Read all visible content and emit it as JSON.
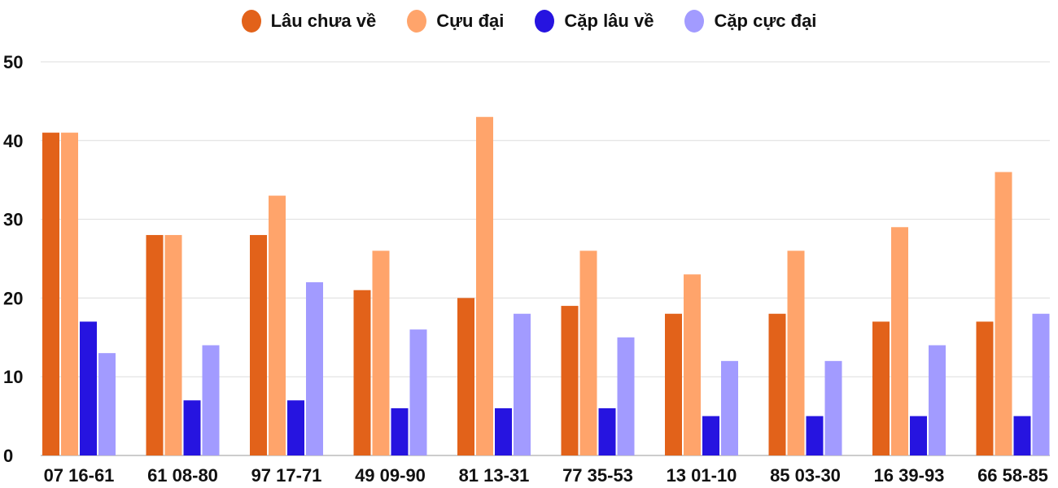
{
  "chart_data": {
    "type": "bar",
    "categories": [
      "07 16-61",
      "61 08-80",
      "97 17-71",
      "49 09-90",
      "81 13-31",
      "77 35-53",
      "13 01-10",
      "85 03-30",
      "16 39-93",
      "66 58-85"
    ],
    "series": [
      {
        "name": "Lâu chưa về",
        "color": "#e2621a",
        "values": [
          41,
          28,
          28,
          21,
          20,
          19,
          18,
          18,
          17,
          17
        ]
      },
      {
        "name": "Cựu đại",
        "color": "#ffa46b",
        "values": [
          41,
          28,
          33,
          26,
          43,
          26,
          23,
          26,
          29,
          36
        ]
      },
      {
        "name": "Cặp lâu về",
        "color": "#2614e0",
        "values": [
          17,
          7,
          7,
          6,
          6,
          6,
          5,
          5,
          5,
          5
        ]
      },
      {
        "name": "Cặp cực đại",
        "color": "#a29bff",
        "values": [
          13,
          14,
          22,
          16,
          18,
          15,
          12,
          12,
          14,
          18
        ]
      }
    ],
    "ylim": [
      0,
      50
    ],
    "yticks": [
      "0",
      "10",
      "20",
      "30",
      "40",
      "50"
    ],
    "grid": true,
    "legend_position": "top"
  }
}
